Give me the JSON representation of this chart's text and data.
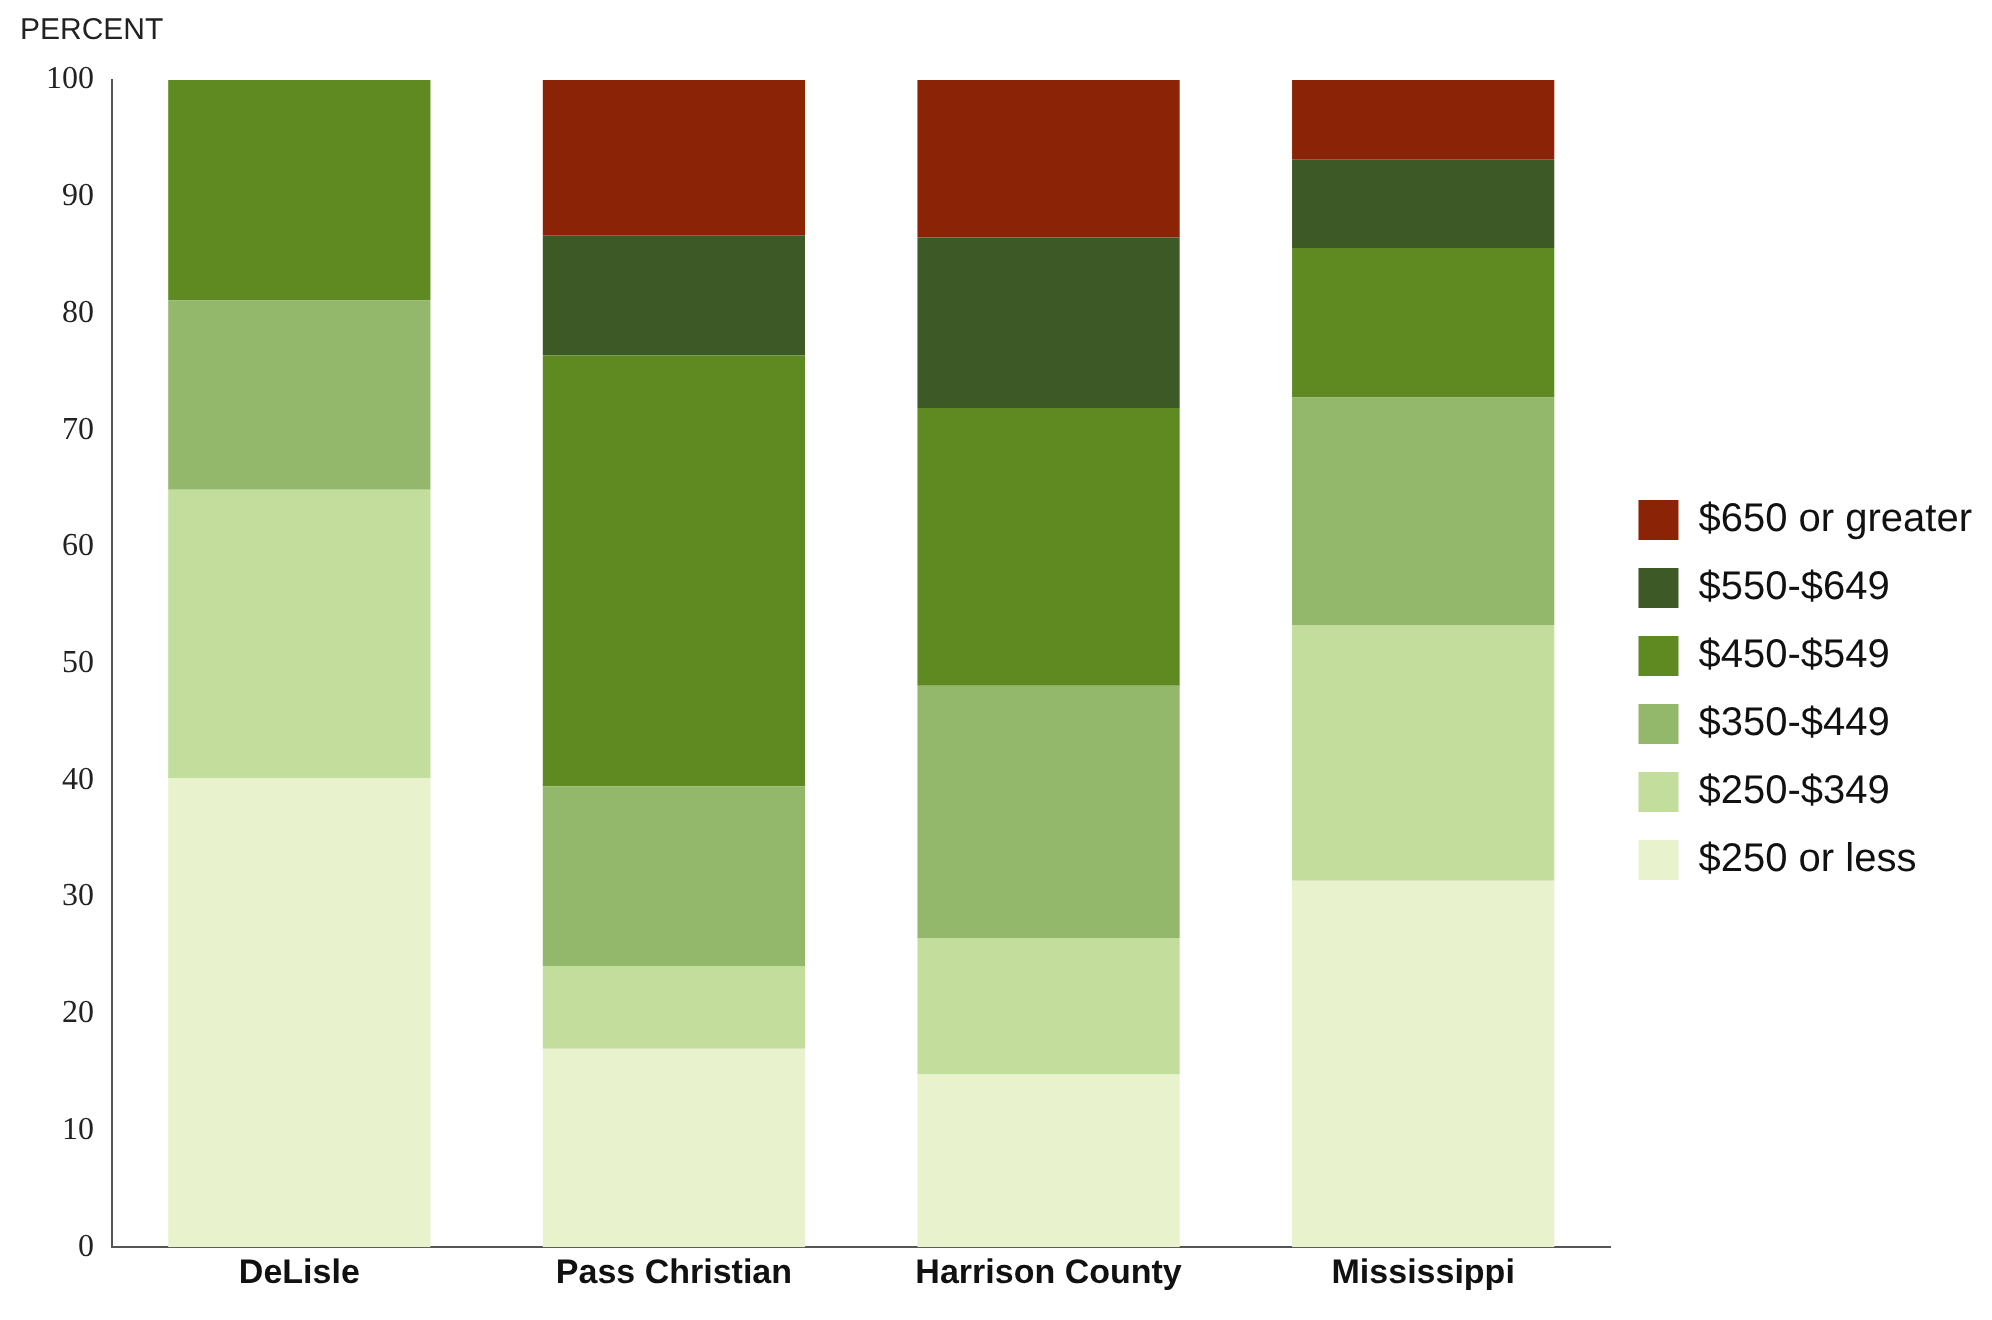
{
  "chart_data": {
    "type": "bar",
    "stacked": true,
    "ylabel": "PERCENT",
    "categories": [
      "DeLisle",
      "Pass Christian",
      "Harrison County",
      "Mississippi"
    ],
    "ylim": [
      0,
      100
    ],
    "yticks": [
      0,
      10,
      20,
      30,
      40,
      50,
      60,
      70,
      80,
      90,
      100
    ],
    "grid": false,
    "legend": "right",
    "series": [
      {
        "name": "$250 or less",
        "color": "#e8f2cc",
        "values": [
          40.2,
          17,
          14.8,
          31.4
        ]
      },
      {
        "name": "$250-$349",
        "color": "#c3de9c",
        "values": [
          24.7,
          7.1,
          11.7,
          21.9
        ]
      },
      {
        "name": "$350-$449",
        "color": "#93b86b",
        "values": [
          16.2,
          15.4,
          21.6,
          19.5
        ]
      },
      {
        "name": "$450-$549",
        "color": "#5f8a22",
        "values": [
          18.9,
          36.9,
          23.8,
          12.8
        ]
      },
      {
        "name": "$550-$649",
        "color": "#3d5a26",
        "values": [
          null,
          10.3,
          14.6,
          7.6
        ]
      },
      {
        "name": "$650 or greater",
        "color": "#8b2306",
        "values": [
          null,
          13.3,
          13.5,
          6.8
        ]
      }
    ]
  }
}
